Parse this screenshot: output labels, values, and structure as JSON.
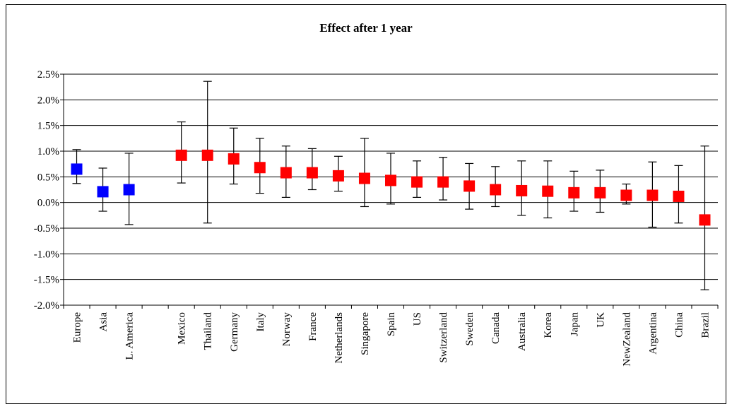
{
  "chart_data": {
    "type": "scatter",
    "title": "Effect after 1 year",
    "xlabel": "",
    "ylabel": "",
    "ylim": [
      -0.02,
      0.025
    ],
    "y_ticks": [
      "2.5%",
      "2.0%",
      "1.5%",
      "1.0%",
      "0.5%",
      "0.0%",
      "-0.5%",
      "-1.0%",
      "-1.5%",
      "-2.0%"
    ],
    "grid": true,
    "legend": "none",
    "colors": {
      "region": "#0000ff",
      "country": "#ff0000"
    },
    "points": [
      {
        "label": "Europe",
        "y": 0.0065,
        "low": 0.0037,
        "high": 0.0103,
        "group": "region"
      },
      {
        "label": "Asia",
        "y": 0.0021,
        "low": -0.0017,
        "high": 0.0067,
        "group": "region"
      },
      {
        "label": "L. America",
        "y": 0.0025,
        "low": -0.0043,
        "high": 0.0096,
        "group": "region"
      },
      {
        "label": "Mexico",
        "y": 0.0092,
        "low": 0.0038,
        "high": 0.0157,
        "group": "country"
      },
      {
        "label": "Thailand",
        "y": 0.0092,
        "low": -0.004,
        "high": 0.0236,
        "group": "country"
      },
      {
        "label": "Germany",
        "y": 0.0085,
        "low": 0.0036,
        "high": 0.0145,
        "group": "country"
      },
      {
        "label": "Italy",
        "y": 0.0068,
        "low": 0.0018,
        "high": 0.0125,
        "group": "country"
      },
      {
        "label": "Norway",
        "y": 0.0058,
        "low": 0.001,
        "high": 0.011,
        "group": "country"
      },
      {
        "label": "France",
        "y": 0.0058,
        "low": 0.0025,
        "high": 0.0105,
        "group": "country"
      },
      {
        "label": "Netherlands",
        "y": 0.0052,
        "low": 0.0022,
        "high": 0.009,
        "group": "country"
      },
      {
        "label": "Singapore",
        "y": 0.0047,
        "low": -0.0008,
        "high": 0.0125,
        "group": "country"
      },
      {
        "label": "Spain",
        "y": 0.0043,
        "low": -0.0003,
        "high": 0.0096,
        "group": "country"
      },
      {
        "label": "US",
        "y": 0.004,
        "low": 0.001,
        "high": 0.0081,
        "group": "country"
      },
      {
        "label": "Switzerland",
        "y": 0.004,
        "low": 0.0005,
        "high": 0.0088,
        "group": "country"
      },
      {
        "label": "Sweden",
        "y": 0.0032,
        "low": -0.0013,
        "high": 0.0076,
        "group": "country"
      },
      {
        "label": "Canada",
        "y": 0.0025,
        "low": -0.0008,
        "high": 0.007,
        "group": "country"
      },
      {
        "label": "Australia",
        "y": 0.0023,
        "low": -0.0025,
        "high": 0.0081,
        "group": "country"
      },
      {
        "label": "Korea",
        "y": 0.0022,
        "low": -0.003,
        "high": 0.0081,
        "group": "country"
      },
      {
        "label": "Japan",
        "y": 0.0019,
        "low": -0.0017,
        "high": 0.0061,
        "group": "country"
      },
      {
        "label": "UK",
        "y": 0.0019,
        "low": -0.0019,
        "high": 0.0063,
        "group": "country"
      },
      {
        "label": "NewZealand",
        "y": 0.0014,
        "low": -0.0003,
        "high": 0.0036,
        "group": "country"
      },
      {
        "label": "Argentina",
        "y": 0.0014,
        "low": -0.0048,
        "high": 0.0079,
        "group": "country"
      },
      {
        "label": "China",
        "y": 0.0012,
        "low": -0.004,
        "high": 0.0072,
        "group": "country"
      },
      {
        "label": "Brazil",
        "y": -0.0034,
        "low": -0.017,
        "high": 0.011,
        "group": "country"
      }
    ]
  }
}
